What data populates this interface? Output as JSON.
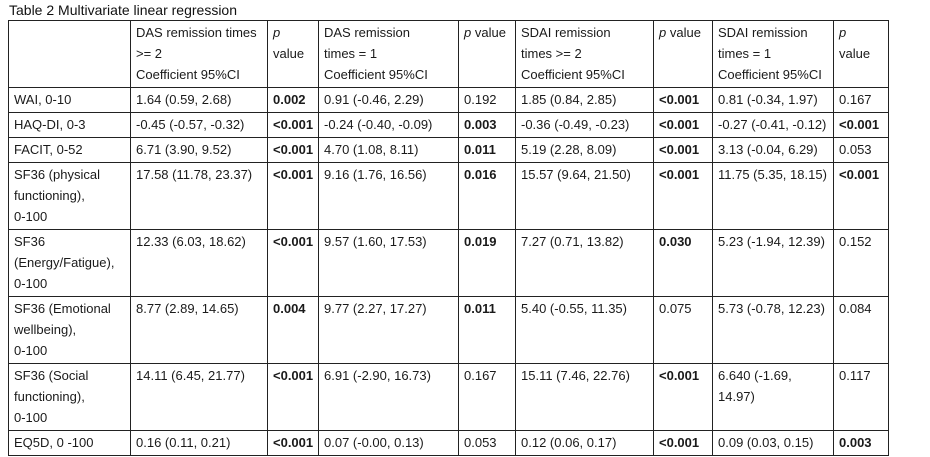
{
  "table": {
    "title": "Table 2 Multivariate linear regression",
    "header": [
      {
        "label": "",
        "lines": []
      },
      {
        "label": "DAS remission times >= 2 Coefficient 95%CI",
        "lines": [
          "DAS remission times",
          ">= 2",
          "Coefficient 95%CI"
        ]
      },
      {
        "label": "p value",
        "lines": [
          "p",
          "value"
        ],
        "p_italic": true
      },
      {
        "label": "DAS remission times = 1 Coefficient 95%CI",
        "lines": [
          "DAS remission",
          "times = 1",
          "Coefficient 95%CI"
        ]
      },
      {
        "label": "p value",
        "lines": [
          "p value"
        ],
        "p_italic": true
      },
      {
        "label": "SDAI remission times >= 2 Coefficient 95%CI",
        "lines": [
          "SDAI remission",
          "times >= 2",
          "Coefficient 95%CI"
        ]
      },
      {
        "label": "p value",
        "lines": [
          "p value"
        ],
        "p_italic": true
      },
      {
        "label": "SDAI remission times = 1 Coefficient 95%CI",
        "lines": [
          "SDAI remission",
          "times = 1",
          "Coefficient 95%CI"
        ]
      },
      {
        "label": "p value",
        "lines": [
          "p",
          "value"
        ],
        "p_italic": true
      }
    ],
    "rows": [
      {
        "label": "WAI, 0-10",
        "label_lines": [
          "WAI, 0-10"
        ],
        "cells": [
          {
            "text": "1.64 (0.59, 2.68)"
          },
          {
            "text": "0.002",
            "bold": true
          },
          {
            "text": "0.91 (-0.46, 2.29)"
          },
          {
            "text": "0.192"
          },
          {
            "text": "1.85 (0.84, 2.85)"
          },
          {
            "text": "<0.001",
            "bold": true
          },
          {
            "text": "0.81 (-0.34, 1.97)"
          },
          {
            "text": "0.167"
          }
        ]
      },
      {
        "label": "HAQ-DI, 0-3",
        "label_lines": [
          "HAQ-DI, 0-3"
        ],
        "cells": [
          {
            "text": "-0.45 (-0.57, -0.32)"
          },
          {
            "text": "<0.001",
            "bold": true
          },
          {
            "text": "-0.24 (-0.40, -0.09)"
          },
          {
            "text": "0.003",
            "bold": true
          },
          {
            "text": "-0.36 (-0.49, -0.23)"
          },
          {
            "text": "<0.001",
            "bold": true
          },
          {
            "text": "-0.27 (-0.41, -0.12)"
          },
          {
            "text": "<0.001",
            "bold": true
          }
        ]
      },
      {
        "label": "FACIT, 0-52",
        "label_lines": [
          "FACIT, 0-52"
        ],
        "cells": [
          {
            "text": "6.71 (3.90, 9.52)"
          },
          {
            "text": "<0.001",
            "bold": true
          },
          {
            "text": "4.70 (1.08, 8.11)"
          },
          {
            "text": "0.011",
            "bold": true
          },
          {
            "text": "5.19 (2.28, 8.09)"
          },
          {
            "text": "<0.001",
            "bold": true
          },
          {
            "text": "3.13 (-0.04, 6.29)"
          },
          {
            "text": "0.053"
          }
        ]
      },
      {
        "label": "SF36 (physical functioning), 0-100",
        "label_lines": [
          "SF36 (physical",
          "functioning),",
          "0-100"
        ],
        "cells": [
          {
            "text": "17.58 (11.78, 23.37)"
          },
          {
            "text": "<0.001",
            "bold": true
          },
          {
            "text": "9.16 (1.76, 16.56)"
          },
          {
            "text": "0.016",
            "bold": true
          },
          {
            "text": "15.57 (9.64, 21.50)"
          },
          {
            "text": "<0.001",
            "bold": true
          },
          {
            "text": "11.75 (5.35, 18.15)"
          },
          {
            "text": "<0.001",
            "bold": true
          }
        ]
      },
      {
        "label": "SF36 (Energy/Fatigue), 0-100",
        "label_lines": [
          "SF36",
          "(Energy/Fatigue),",
          "0-100"
        ],
        "cells": [
          {
            "text": "12.33 (6.03, 18.62)"
          },
          {
            "text": "<0.001",
            "bold": true
          },
          {
            "text": "9.57 (1.60, 17.53)"
          },
          {
            "text": "0.019",
            "bold": true
          },
          {
            "text": "7.27 (0.71, 13.82)"
          },
          {
            "text": "0.030",
            "bold": true
          },
          {
            "text": "5.23 (-1.94, 12.39)"
          },
          {
            "text": "0.152"
          }
        ]
      },
      {
        "label": "SF36 (Emotional wellbeing), 0-100",
        "label_lines": [
          "SF36 (Emotional",
          "wellbeing),",
          "0-100"
        ],
        "cells": [
          {
            "text": "8.77 (2.89, 14.65)"
          },
          {
            "text": "0.004",
            "bold": true
          },
          {
            "text": "9.77 (2.27, 17.27)"
          },
          {
            "text": "0.011",
            "bold": true
          },
          {
            "text": "5.40 (-0.55, 11.35)"
          },
          {
            "text": "0.075"
          },
          {
            "text": "5.73 (-0.78, 12.23)"
          },
          {
            "text": "0.084"
          }
        ]
      },
      {
        "label": "SF36 (Social functioning), 0-100",
        "label_lines": [
          "SF36 (Social",
          "functioning),",
          "0-100"
        ],
        "cells": [
          {
            "text": "14.11 (6.45, 21.77)"
          },
          {
            "text": "<0.001",
            "bold": true
          },
          {
            "text": "6.91 (-2.90, 16.73)"
          },
          {
            "text": "0.167"
          },
          {
            "text": "15.11 (7.46, 22.76)"
          },
          {
            "text": "<0.001",
            "bold": true
          },
          {
            "text": "6.640 (-1.69, 14.97)"
          },
          {
            "text": "0.117"
          }
        ]
      },
      {
        "label": "EQ5D, 0 -100",
        "label_lines": [
          "EQ5D, 0 -100"
        ],
        "cells": [
          {
            "text": "0.16 (0.11, 0.21)"
          },
          {
            "text": "<0.001",
            "bold": true
          },
          {
            "text": "0.07 (-0.00, 0.13)"
          },
          {
            "text": "0.053"
          },
          {
            "text": "0.12 (0.06, 0.17)"
          },
          {
            "text": "<0.001",
            "bold": true
          },
          {
            "text": "0.09 (0.03, 0.15)"
          },
          {
            "text": "0.003",
            "bold": true
          }
        ]
      }
    ]
  }
}
